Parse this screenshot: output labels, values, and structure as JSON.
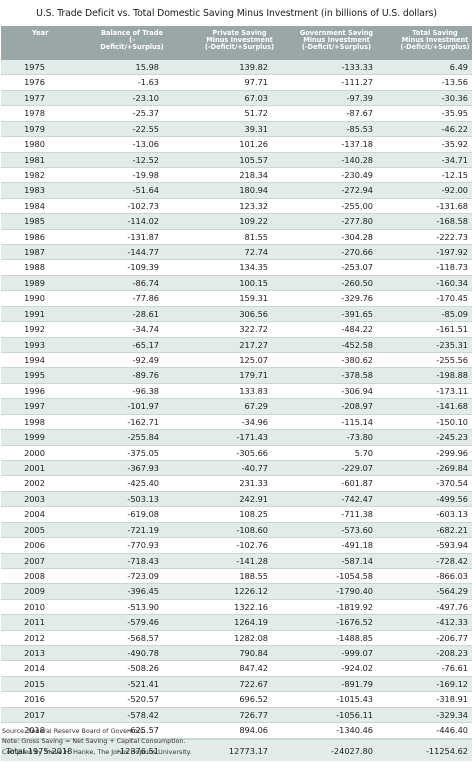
{
  "title": "U.S. Trade Deficit vs. Total Domestic Saving Minus Investment (in billions of U.S. dollars)",
  "headers": [
    "Year",
    "Balance of Trade",
    "Private Saving",
    "Government Saving",
    "Total Saving"
  ],
  "headers_mid": [
    "",
    "",
    "Minus Investment",
    "Minus Investment",
    "Minus Investment"
  ],
  "headers_sub": [
    "",
    "(-Deficit/+Surplus)",
    "(-Deficit/+Surplus)",
    "(-Deficit/+Surplus)",
    "(-Deficit/+Surplus)"
  ],
  "rows": [
    [
      "1975",
      "15.98",
      "139.82",
      "-133.33",
      "6.49"
    ],
    [
      "1976",
      "-1.63",
      "97.71",
      "-111.27",
      "-13.56"
    ],
    [
      "1977",
      "-23.10",
      "67.03",
      "-97.39",
      "-30.36"
    ],
    [
      "1978",
      "-25.37",
      "51.72",
      "-87.67",
      "-35.95"
    ],
    [
      "1979",
      "-22.55",
      "39.31",
      "-85.53",
      "-46.22"
    ],
    [
      "1980",
      "-13.06",
      "101.26",
      "-137.18",
      "-35.92"
    ],
    [
      "1981",
      "-12.52",
      "105.57",
      "-140.28",
      "-34.71"
    ],
    [
      "1982",
      "-19.98",
      "218.34",
      "-230.49",
      "-12.15"
    ],
    [
      "1983",
      "-51.64",
      "180.94",
      "-272.94",
      "-92.00"
    ],
    [
      "1984",
      "-102.73",
      "123.32",
      "-255.00",
      "-131.68"
    ],
    [
      "1985",
      "-114.02",
      "109.22",
      "-277.80",
      "-168.58"
    ],
    [
      "1986",
      "-131.87",
      "81.55",
      "-304.28",
      "-222.73"
    ],
    [
      "1987",
      "-144.77",
      "72.74",
      "-270.66",
      "-197.92"
    ],
    [
      "1988",
      "-109.39",
      "134.35",
      "-253.07",
      "-118.73"
    ],
    [
      "1989",
      "-86.74",
      "100.15",
      "-260.50",
      "-160.34"
    ],
    [
      "1990",
      "-77.86",
      "159.31",
      "-329.76",
      "-170.45"
    ],
    [
      "1991",
      "-28.61",
      "306.56",
      "-391.65",
      "-85.09"
    ],
    [
      "1992",
      "-34.74",
      "322.72",
      "-484.22",
      "-161.51"
    ],
    [
      "1993",
      "-65.17",
      "217.27",
      "-452.58",
      "-235.31"
    ],
    [
      "1994",
      "-92.49",
      "125.07",
      "-380.62",
      "-255.56"
    ],
    [
      "1995",
      "-89.76",
      "179.71",
      "-378.58",
      "-198.88"
    ],
    [
      "1996",
      "-96.38",
      "133.83",
      "-306.94",
      "-173.11"
    ],
    [
      "1997",
      "-101.97",
      "67.29",
      "-208.97",
      "-141.68"
    ],
    [
      "1998",
      "-162.71",
      "-34.96",
      "-115.14",
      "-150.10"
    ],
    [
      "1999",
      "-255.84",
      "-171.43",
      "-73.80",
      "-245.23"
    ],
    [
      "2000",
      "-375.05",
      "-305.66",
      "5.70",
      "-299.96"
    ],
    [
      "2001",
      "-367.93",
      "-40.77",
      "-229.07",
      "-269.84"
    ],
    [
      "2002",
      "-425.40",
      "231.33",
      "-601.87",
      "-370.54"
    ],
    [
      "2003",
      "-503.13",
      "242.91",
      "-742.47",
      "-499.56"
    ],
    [
      "2004",
      "-619.08",
      "108.25",
      "-711.38",
      "-603.13"
    ],
    [
      "2005",
      "-721.19",
      "-108.60",
      "-573.60",
      "-682.21"
    ],
    [
      "2006",
      "-770.93",
      "-102.76",
      "-491.18",
      "-593.94"
    ],
    [
      "2007",
      "-718.43",
      "-141.28",
      "-587.14",
      "-728.42"
    ],
    [
      "2008",
      "-723.09",
      "188.55",
      "-1054.58",
      "-866.03"
    ],
    [
      "2009",
      "-396.45",
      "1226.12",
      "-1790.40",
      "-564.29"
    ],
    [
      "2010",
      "-513.90",
      "1322.16",
      "-1819.92",
      "-497.76"
    ],
    [
      "2011",
      "-579.46",
      "1264.19",
      "-1676.52",
      "-412.33"
    ],
    [
      "2012",
      "-568.57",
      "1282.08",
      "-1488.85",
      "-206.77"
    ],
    [
      "2013",
      "-490.78",
      "790.84",
      "-999.07",
      "-208.23"
    ],
    [
      "2014",
      "-508.26",
      "847.42",
      "-924.02",
      "-76.61"
    ],
    [
      "2015",
      "-521.41",
      "722.67",
      "-891.79",
      "-169.12"
    ],
    [
      "2016",
      "-520.57",
      "696.52",
      "-1015.43",
      "-318.91"
    ],
    [
      "2017",
      "-578.42",
      "726.77",
      "-1056.11",
      "-329.34"
    ],
    [
      "2018",
      "-625.57",
      "894.06",
      "-1340.46",
      "-446.40"
    ]
  ],
  "total": {
    "label": "Total 1975-2018",
    "balance": "-12376.51",
    "private": "12773.17",
    "government": "-24027.80",
    "total": "-11254.62"
  },
  "notes": [
    "Source: Federal Reserve Board of Governors.",
    "Note: Gross Saving = Net Saving + Capital Consumption.",
    "Compiled by Steve H. Hanke, The Johns Hopkins University."
  ],
  "colors": {
    "header_bg": "#9aa7a6",
    "row_band": "#e3ebe9",
    "rule": "#c9d6d3"
  }
}
